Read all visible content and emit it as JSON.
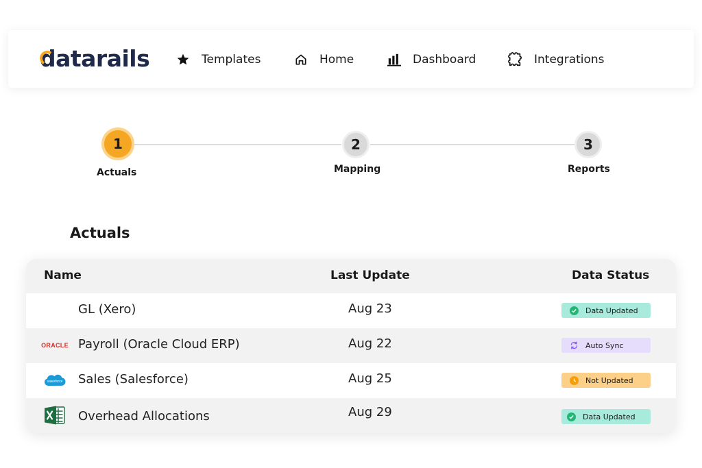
{
  "header": {
    "logo_text": "datarails",
    "nav": [
      {
        "label": "Templates",
        "icon": "star-icon"
      },
      {
        "label": "Home",
        "icon": "home-icon"
      },
      {
        "label": "Dashboard",
        "icon": "bar-chart-icon"
      },
      {
        "label": "Integrations",
        "icon": "puzzle-icon"
      }
    ]
  },
  "stepper": {
    "steps": [
      {
        "number": "1",
        "label": "Actuals",
        "active": true
      },
      {
        "number": "2",
        "label": "Mapping",
        "active": false
      },
      {
        "number": "3",
        "label": "Reports",
        "active": false
      }
    ]
  },
  "section": {
    "title": "Actuals"
  },
  "table": {
    "columns": [
      "Name",
      "Last Update",
      "Data Status"
    ],
    "rows": [
      {
        "name": "GL (Xero)",
        "last_update": "Aug 23",
        "status": "Data Updated",
        "status_type": "updated",
        "logo": "none"
      },
      {
        "name": "Payroll (Oracle Cloud ERP)",
        "last_update": "Aug 22",
        "status": "Auto Sync",
        "status_type": "sync",
        "logo": "oracle-logo",
        "logo_text": "ORACLE"
      },
      {
        "name": "Sales (Salesforce)",
        "last_update": "Aug 25",
        "status": "Not Updated",
        "status_type": "not-updated",
        "logo": "salesforce-logo",
        "logo_text": "salesforce"
      },
      {
        "name": "Overhead Allocations",
        "last_update": "Aug 29",
        "status": "Data Updated",
        "status_type": "updated",
        "logo": "excel-logo"
      }
    ]
  },
  "colors": {
    "accent": "#f5a623",
    "brand_navy": "#1f2a4a",
    "status_updated_bg": "#a8ebdc",
    "status_updated_icon": "#22b573",
    "status_sync_bg": "#e6dcfb",
    "status_sync_icon": "#8b5cf6",
    "status_not_updated_bg": "#fdd08a",
    "status_not_updated_icon": "#f59e0b"
  }
}
